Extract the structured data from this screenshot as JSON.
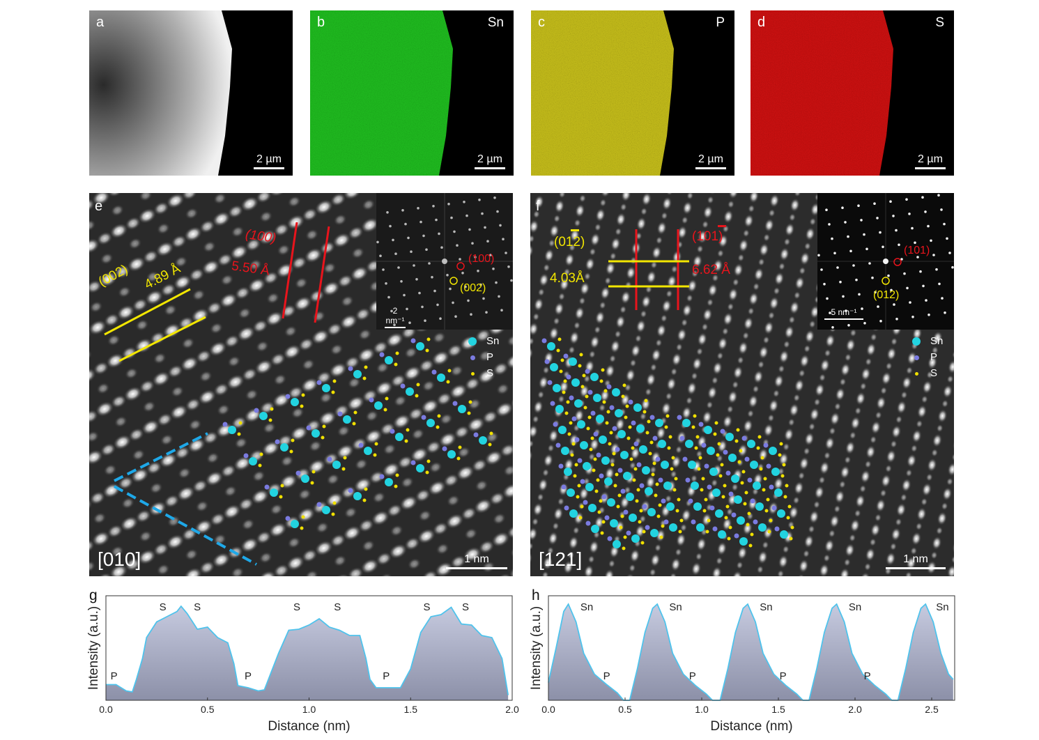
{
  "panels_top": [
    {
      "letter": "a",
      "element": "",
      "scale": "2 µm",
      "color": "#ffffff"
    },
    {
      "letter": "b",
      "element": "Sn",
      "scale": "2 µm",
      "color": "#1fbf1f"
    },
    {
      "letter": "c",
      "element": "P",
      "scale": "2 µm",
      "color": "#c8c01a"
    },
    {
      "letter": "d",
      "element": "S",
      "scale": "2 µm",
      "color": "#d01010"
    }
  ],
  "panel_e": {
    "letter": "e",
    "zone_axis": "[010]",
    "scale": "1 nm",
    "plane1": "(002)",
    "d1": "4.89 Å",
    "plane2": "(100)",
    "d2": "5.50 Å",
    "fft": {
      "scale": "2 nm⁻¹",
      "spot1": "(100)",
      "spot2": "(002)"
    },
    "legend": [
      {
        "label": "Sn",
        "color": "#22d3e0"
      },
      {
        "label": "P",
        "color": "#7b7be0"
      },
      {
        "label": "S",
        "color": "#f0e000"
      }
    ]
  },
  "panel_f": {
    "letter": "f",
    "zone_axis": "[121]",
    "scale": "1 nm",
    "plane1": "(012)",
    "plane1_bar": "1",
    "d1": "4.03Å",
    "plane2": "(101)",
    "plane2_bar": "1",
    "d2": "6.62 Å",
    "fft": {
      "scale": "5 nm⁻¹",
      "spot1": "(101)",
      "spot2": "(012)"
    },
    "legend": [
      {
        "label": "Sn",
        "color": "#22d3e0"
      },
      {
        "label": "P",
        "color": "#7b7be0"
      },
      {
        "label": "S",
        "color": "#f0e000"
      }
    ]
  },
  "chart_data": [
    {
      "type": "area",
      "panel": "g",
      "xlabel": "Distance (nm)",
      "ylabel": "Intensity (a.u.)",
      "xlim": [
        0,
        2.0
      ],
      "ylim": [
        0,
        1
      ],
      "xticks": [
        "0.0",
        "0.5",
        "1.0",
        "1.5",
        "2.0"
      ],
      "x": [
        0,
        0.05,
        0.1,
        0.13,
        0.15,
        0.18,
        0.2,
        0.25,
        0.3,
        0.35,
        0.37,
        0.4,
        0.45,
        0.5,
        0.55,
        0.6,
        0.63,
        0.65,
        0.7,
        0.75,
        0.78,
        0.8,
        0.85,
        0.9,
        0.95,
        1.0,
        1.05,
        1.1,
        1.15,
        1.2,
        1.25,
        1.28,
        1.3,
        1.33,
        1.4,
        1.45,
        1.5,
        1.55,
        1.6,
        1.65,
        1.7,
        1.75,
        1.8,
        1.85,
        1.9,
        1.95,
        1.98
      ],
      "y": [
        0.15,
        0.15,
        0.09,
        0.08,
        0.2,
        0.4,
        0.6,
        0.75,
        0.8,
        0.85,
        0.9,
        0.83,
        0.68,
        0.7,
        0.6,
        0.55,
        0.35,
        0.14,
        0.12,
        0.09,
        0.1,
        0.2,
        0.45,
        0.67,
        0.68,
        0.72,
        0.78,
        0.7,
        0.67,
        0.62,
        0.62,
        0.4,
        0.2,
        0.12,
        0.12,
        0.12,
        0.3,
        0.65,
        0.8,
        0.82,
        0.89,
        0.73,
        0.72,
        0.62,
        0.6,
        0.4,
        0.05
      ],
      "annotations": [
        {
          "text": "P",
          "x": 0.04,
          "y": 0.2
        },
        {
          "text": "S",
          "x": 0.28,
          "y": 0.86
        },
        {
          "text": "S",
          "x": 0.45,
          "y": 0.86
        },
        {
          "text": "P",
          "x": 0.7,
          "y": 0.2
        },
        {
          "text": "S",
          "x": 0.94,
          "y": 0.86
        },
        {
          "text": "S",
          "x": 1.14,
          "y": 0.86
        },
        {
          "text": "P",
          "x": 1.38,
          "y": 0.2
        },
        {
          "text": "S",
          "x": 1.58,
          "y": 0.86
        },
        {
          "text": "S",
          "x": 1.77,
          "y": 0.86
        }
      ]
    },
    {
      "type": "area",
      "panel": "h",
      "xlabel": "Distance (nm)",
      "ylabel": "Intensity (a.u.)",
      "xlim": [
        0,
        2.65
      ],
      "ylim": [
        0,
        1
      ],
      "xticks": [
        "0.0",
        "0.5",
        "1.0",
        "1.5",
        "2.0",
        "2.5"
      ],
      "x": [
        0,
        0.05,
        0.1,
        0.13,
        0.18,
        0.23,
        0.3,
        0.38,
        0.45,
        0.49,
        0.53,
        0.58,
        0.63,
        0.68,
        0.71,
        0.76,
        0.81,
        0.88,
        0.96,
        1.03,
        1.07,
        1.12,
        1.17,
        1.22,
        1.27,
        1.3,
        1.35,
        1.4,
        1.47,
        1.55,
        1.62,
        1.66,
        1.7,
        1.75,
        1.8,
        1.85,
        1.88,
        1.93,
        1.98,
        2.05,
        2.13,
        2.2,
        2.24,
        2.28,
        2.33,
        2.38,
        2.43,
        2.46,
        2.51,
        2.56,
        2.61,
        2.64
      ],
      "y": [
        0.17,
        0.5,
        0.85,
        0.92,
        0.75,
        0.45,
        0.25,
        0.15,
        0.07,
        0,
        0,
        0.3,
        0.65,
        0.88,
        0.92,
        0.75,
        0.45,
        0.25,
        0.14,
        0.06,
        0,
        0,
        0.3,
        0.65,
        0.88,
        0.92,
        0.75,
        0.45,
        0.25,
        0.14,
        0.06,
        0,
        0,
        0.3,
        0.65,
        0.88,
        0.92,
        0.75,
        0.45,
        0.25,
        0.14,
        0.06,
        0,
        0,
        0.3,
        0.65,
        0.88,
        0.92,
        0.75,
        0.45,
        0.25,
        0.2
      ],
      "annotations": [
        {
          "text": "Sn",
          "x": 0.25,
          "y": 0.86
        },
        {
          "text": "P",
          "x": 0.38,
          "y": 0.2
        },
        {
          "text": "Sn",
          "x": 0.83,
          "y": 0.86
        },
        {
          "text": "P",
          "x": 0.94,
          "y": 0.2
        },
        {
          "text": "Sn",
          "x": 1.42,
          "y": 0.86
        },
        {
          "text": "P",
          "x": 1.53,
          "y": 0.2
        },
        {
          "text": "Sn",
          "x": 2.0,
          "y": 0.86
        },
        {
          "text": "P",
          "x": 2.08,
          "y": 0.2
        },
        {
          "text": "Sn",
          "x": 2.57,
          "y": 0.86
        }
      ]
    }
  ]
}
